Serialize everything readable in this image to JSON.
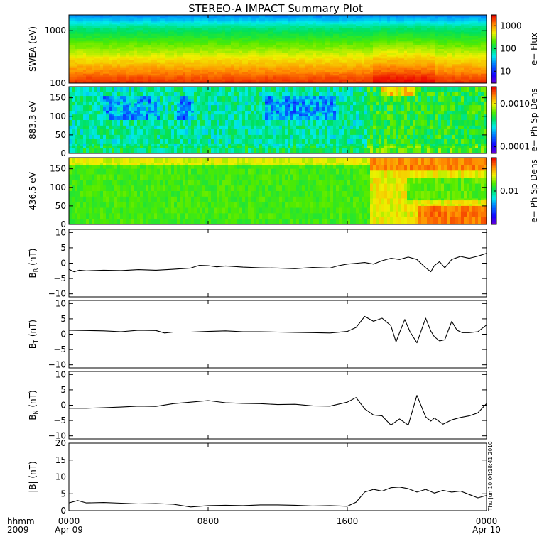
{
  "title": "STEREO-A IMPACT Summary Plot",
  "stamp": "Thu Jun 10 04:18:41 2010",
  "time_axis": {
    "row1_label": "hhmm",
    "row2_label": "2009",
    "ticks": [
      {
        "hour": 0,
        "hhmm": "0000",
        "date": "Apr 09"
      },
      {
        "hour": 8,
        "hhmm": "0800",
        "date": ""
      },
      {
        "hour": 16,
        "hhmm": "1600",
        "date": ""
      },
      {
        "hour": 24,
        "hhmm": "0000",
        "date": "Apr 10"
      }
    ],
    "range_hours": [
      0,
      24
    ]
  },
  "chart_data": [
    {
      "type": "heatmap",
      "ylabel": "SWEA (eV)",
      "yscale": "log",
      "ylim": [
        100,
        2000
      ],
      "yticks": [
        {
          "v": 100,
          "label": "100"
        },
        {
          "v": 1000,
          "label": "1000"
        }
      ],
      "colorbar": {
        "label": "e− Flux",
        "scale": "log",
        "range": [
          3,
          3000
        ],
        "ticks": [
          {
            "v": 10,
            "label": "10"
          },
          {
            "v": 100,
            "label": "100"
          },
          {
            "v": 1000,
            "label": "1000"
          }
        ]
      }
    },
    {
      "type": "heatmap",
      "ylabel": "883.3 eV",
      "ylim": [
        0,
        180
      ],
      "yticks": [
        {
          "v": 0,
          "label": "0"
        },
        {
          "v": 50,
          "label": "50"
        },
        {
          "v": 100,
          "label": "100"
        },
        {
          "v": 150,
          "label": "150"
        }
      ],
      "colorbar": {
        "label": "e− Ph Sp Dens",
        "scale": "log",
        "range": [
          7e-05,
          0.0025
        ],
        "ticks": [
          {
            "v": 0.0001,
            "label": "0.0001"
          },
          {
            "v": 0.001,
            "label": "0.0010"
          }
        ]
      }
    },
    {
      "type": "heatmap",
      "ylabel": "436.5 eV",
      "ylim": [
        0,
        180
      ],
      "yticks": [
        {
          "v": 0,
          "label": "0"
        },
        {
          "v": 50,
          "label": "50"
        },
        {
          "v": 100,
          "label": "100"
        },
        {
          "v": 150,
          "label": "150"
        }
      ],
      "colorbar": {
        "label": "e− Ph Sp Dens",
        "scale": "log",
        "range": [
          0.002,
          0.05
        ],
        "ticks": [
          {
            "v": 0.01,
            "label": "0.01"
          }
        ]
      }
    },
    {
      "type": "line",
      "ylabel": {
        "main": "B",
        "sub": "R",
        "unit": " (nT)"
      },
      "ylim": [
        -11,
        11
      ],
      "yticks": [
        {
          "v": -10,
          "label": "−10"
        },
        {
          "v": -5,
          "label": "−5"
        },
        {
          "v": 0,
          "label": "0"
        },
        {
          "v": 5,
          "label": "5"
        },
        {
          "v": 10,
          "label": "10"
        }
      ],
      "x": [
        0,
        0.3,
        0.6,
        1,
        2,
        3,
        4,
        5,
        6,
        7,
        7.5,
        8,
        8.5,
        9,
        10,
        11,
        12,
        13,
        14,
        15,
        15.5,
        16,
        17,
        17.5,
        18,
        18.5,
        19,
        19.5,
        20,
        20.5,
        20.8,
        21,
        21.3,
        21.6,
        22,
        22.5,
        23,
        23.5,
        24
      ],
      "y": [
        -2,
        -2.8,
        -2.3,
        -2.5,
        -2.3,
        -2.4,
        -2.1,
        -2.3,
        -2,
        -1.6,
        -0.7,
        -0.8,
        -1.2,
        -0.9,
        -1.3,
        -1.5,
        -1.6,
        -1.8,
        -1.4,
        -1.6,
        -0.8,
        -0.3,
        0.2,
        -0.3,
        0.8,
        1.6,
        1.2,
        2,
        1.2,
        -1.5,
        -2.8,
        -0.8,
        0.5,
        -1.5,
        1.2,
        2.2,
        1.6,
        2.3,
        3.2
      ]
    },
    {
      "type": "line",
      "ylabel": {
        "main": "B",
        "sub": "T",
        "unit": " (nT)"
      },
      "ylim": [
        -11,
        11
      ],
      "yticks": [
        {
          "v": -10,
          "label": "−10"
        },
        {
          "v": -5,
          "label": "−5"
        },
        {
          "v": 0,
          "label": "0"
        },
        {
          "v": 5,
          "label": "5"
        },
        {
          "v": 10,
          "label": "10"
        }
      ],
      "x": [
        0,
        1,
        2,
        3,
        4,
        5,
        5.5,
        6,
        7,
        8,
        9,
        10,
        11,
        12,
        13,
        14,
        15,
        16,
        16.5,
        17,
        17.5,
        18,
        18.5,
        18.8,
        19,
        19.3,
        19.6,
        20,
        20.5,
        20.8,
        21,
        21.3,
        21.6,
        22,
        22.3,
        22.6,
        23,
        23.5,
        24
      ],
      "y": [
        1.3,
        1.2,
        1.1,
        0.8,
        1.3,
        1.2,
        0.4,
        0.7,
        0.7,
        0.9,
        1.1,
        0.8,
        0.8,
        0.7,
        0.6,
        0.5,
        0.4,
        0.9,
        2.2,
        5.8,
        4.2,
        5.2,
        2.8,
        -2.5,
        0.5,
        4.8,
        0.8,
        -2.8,
        5.2,
        1.0,
        -0.8,
        -2.2,
        -1.8,
        4.2,
        1.3,
        0.5,
        0.5,
        0.8,
        3.0
      ]
    },
    {
      "type": "line",
      "ylabel": {
        "main": "B",
        "sub": "N",
        "unit": " (nT)"
      },
      "ylim": [
        -11,
        11
      ],
      "yticks": [
        {
          "v": -10,
          "label": "−10"
        },
        {
          "v": -5,
          "label": "−5"
        },
        {
          "v": 0,
          "label": "0"
        },
        {
          "v": 5,
          "label": "5"
        },
        {
          "v": 10,
          "label": "10"
        }
      ],
      "x": [
        0,
        1,
        2,
        3,
        4,
        5,
        6,
        7,
        8,
        9,
        10,
        11,
        12,
        13,
        14,
        15,
        16,
        16.5,
        17,
        17.5,
        18,
        18.5,
        19,
        19.5,
        20,
        20.5,
        20.8,
        21,
        21.5,
        22,
        22.5,
        23,
        23.5,
        24
      ],
      "y": [
        -1,
        -1,
        -0.8,
        -0.6,
        -0.3,
        -0.4,
        0.5,
        1,
        1.5,
        0.8,
        0.6,
        0.5,
        0.2,
        0.3,
        -0.2,
        -0.3,
        1,
        2.5,
        -1.2,
        -3.2,
        -3.5,
        -6.5,
        -4.5,
        -6.5,
        3.2,
        -3.8,
        -5.2,
        -4.2,
        -6.2,
        -4.8,
        -4,
        -3.5,
        -2.5,
        0.5
      ]
    },
    {
      "type": "line",
      "ylabel": {
        "main": "|B|",
        "sub": "",
        "unit": " (nT)"
      },
      "ylim": [
        0,
        20
      ],
      "yticks": [
        {
          "v": 0,
          "label": "0"
        },
        {
          "v": 5,
          "label": "5"
        },
        {
          "v": 10,
          "label": "10"
        },
        {
          "v": 15,
          "label": "15"
        },
        {
          "v": 20,
          "label": "20"
        }
      ],
      "x": [
        0,
        0.5,
        1,
        2,
        3,
        4,
        5,
        6,
        7,
        8,
        9,
        10,
        11,
        12,
        13,
        14,
        15,
        16,
        16.5,
        17,
        17.5,
        18,
        18.5,
        19,
        19.5,
        20,
        20.5,
        21,
        21.5,
        22,
        22.5,
        23,
        23.5,
        24
      ],
      "y": [
        2.3,
        3.0,
        2.3,
        2.4,
        2.2,
        2.0,
        2.1,
        1.9,
        1.1,
        1.5,
        1.6,
        1.5,
        1.7,
        1.7,
        1.6,
        1.4,
        1.5,
        1.3,
        2.5,
        5.5,
        6.3,
        5.8,
        6.8,
        7.0,
        6.5,
        5.5,
        6.3,
        5.2,
        6.0,
        5.5,
        5.8,
        4.8,
        3.8,
        4.5
      ]
    }
  ]
}
